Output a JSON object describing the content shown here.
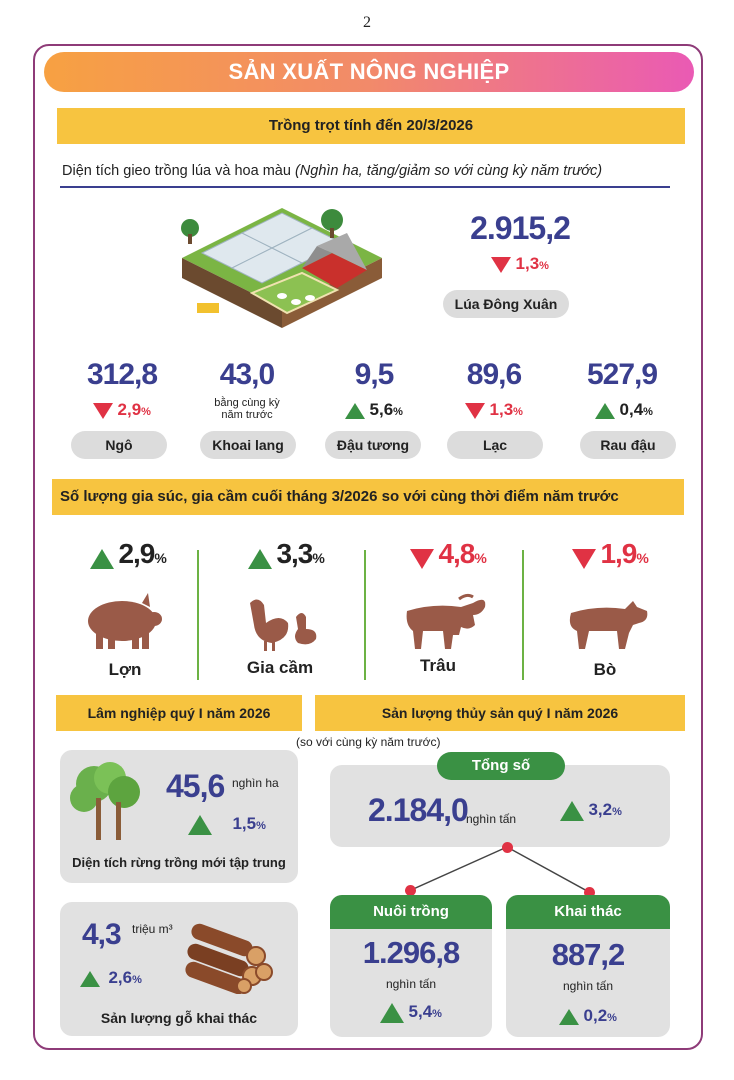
{
  "page_number": "2",
  "title": "SẢN XUẤT NÔNG NGHIỆP",
  "crops": {
    "section_title": "Trồng trọt tính đến 20/3/2026",
    "subtitle": "Diện tích gieo trồng lúa và hoa màu",
    "subtitle_note": "(Nghìn ha, tăng/giảm so với cùng kỳ năm trước)",
    "rice": {
      "value": "2.915,2",
      "change": "1,3",
      "direction": "down",
      "label": "Lúa Đông Xuân"
    },
    "items": [
      {
        "value": "312,8",
        "change": "2,9",
        "direction": "down",
        "label": "Ngô"
      },
      {
        "value": "43,0",
        "change_text": "bằng cùng kỳ năm trước",
        "direction": "none",
        "label": "Khoai lang"
      },
      {
        "value": "9,5",
        "change": "5,6",
        "direction": "up",
        "label": "Đậu tương"
      },
      {
        "value": "89,6",
        "change": "1,3",
        "direction": "down",
        "label": "Lạc"
      },
      {
        "value": "527,9",
        "change": "0,4",
        "direction": "up",
        "label": "Rau đậu"
      }
    ]
  },
  "livestock": {
    "section_title": "Số lượng gia súc, gia cầm cuối tháng 3/2026 so với cùng thời điểm năm trước",
    "items": [
      {
        "change": "2,9",
        "direction": "up",
        "label": "Lợn"
      },
      {
        "change": "3,3",
        "direction": "up",
        "label": "Gia cầm"
      },
      {
        "change": "4,8",
        "direction": "down",
        "label": "Trâu"
      },
      {
        "change": "1,9",
        "direction": "down",
        "label": "Bò"
      }
    ]
  },
  "forestry": {
    "section_title": "Lâm nghiệp quý I năm 2026",
    "forest": {
      "value": "45,6",
      "unit": "nghìn ha",
      "change": "1,5",
      "direction": "up",
      "label": "Diện tích rừng trồng mới tập trung"
    },
    "wood": {
      "value": "4,3",
      "unit": "triệu m³",
      "change": "2,6",
      "direction": "up",
      "label": "Sản lượng gỗ khai thác"
    }
  },
  "fishery": {
    "section_title": "Sản lượng thủy sản quý I năm 2026",
    "note": "(so với cùng kỳ năm trước)",
    "total": {
      "label": "Tổng số",
      "value": "2.184,0",
      "unit": "nghìn tấn",
      "change": "3,2",
      "direction": "up"
    },
    "farming": {
      "label": "Nuôi trồng",
      "value": "1.296,8",
      "unit": "nghìn tấn",
      "change": "5,4",
      "direction": "up"
    },
    "catching": {
      "label": "Khai thác",
      "value": "887,2",
      "unit": "nghìn tấn",
      "change": "0,2",
      "direction": "up"
    }
  },
  "percent_sign": "%",
  "colors": {
    "accent_blue": "#3a3f8f",
    "up_green": "#3a9144",
    "down_red": "#e03244",
    "yellow": "#f7c440",
    "frame": "#8e3b78"
  }
}
